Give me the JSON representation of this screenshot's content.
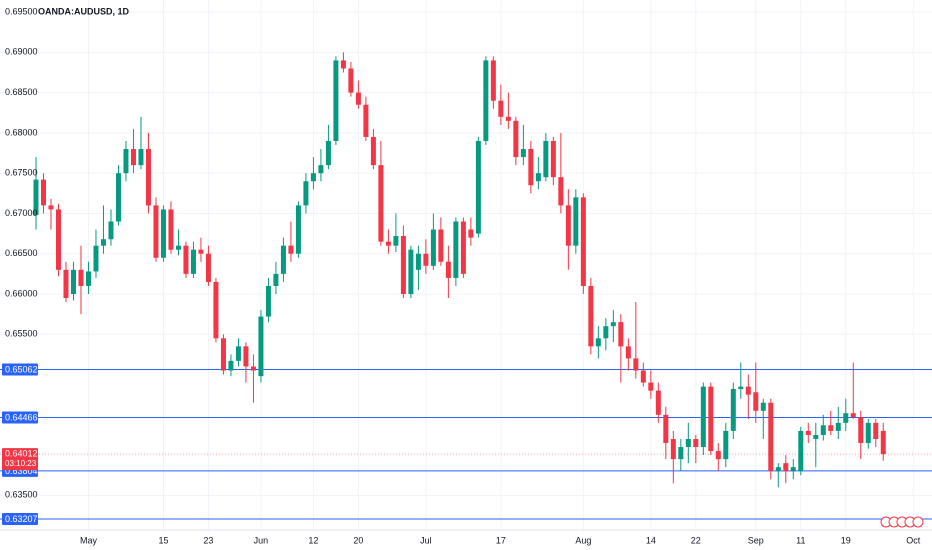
{
  "chart_data": {
    "type": "candlestick",
    "title": "OANDA:AUDUSD, 1D",
    "up_color": "#089981",
    "down_color": "#f23645",
    "grid": true,
    "xlim": [
      -4.8,
      119.5
    ],
    "ylim": [
      0.6307,
      0.6965
    ],
    "yticks": [
      {
        "value": 0.695,
        "label": "0.69500"
      },
      {
        "value": 0.69,
        "label": "0.69000"
      },
      {
        "value": 0.685,
        "label": "0.68500"
      },
      {
        "value": 0.68,
        "label": "0.68000"
      },
      {
        "value": 0.675,
        "label": "0.67500"
      },
      {
        "value": 0.67,
        "label": "0.67000"
      },
      {
        "value": 0.665,
        "label": "0.66500"
      },
      {
        "value": 0.66,
        "label": "0.66000"
      },
      {
        "value": 0.655,
        "label": "0.65500"
      },
      {
        "value": 0.635,
        "label": "0.63500"
      }
    ],
    "xticks": [
      {
        "value": 7,
        "label": "May"
      },
      {
        "value": 17,
        "label": "15"
      },
      {
        "value": 23,
        "label": "23"
      },
      {
        "value": 30,
        "label": "Jun"
      },
      {
        "value": 37,
        "label": "12"
      },
      {
        "value": 43,
        "label": "20"
      },
      {
        "value": 52,
        "label": "Jul"
      },
      {
        "value": 62,
        "label": "17"
      },
      {
        "value": 73,
        "label": "Aug"
      },
      {
        "value": 82,
        "label": "14"
      },
      {
        "value": 88,
        "label": "22"
      },
      {
        "value": 96,
        "label": "Sep"
      },
      {
        "value": 102,
        "label": "11"
      },
      {
        "value": 108,
        "label": "19"
      },
      {
        "value": 117,
        "label": "Oct"
      }
    ],
    "price_lines": [
      {
        "value": 0.65062,
        "label": "0.65062",
        "color": "#2962ff"
      },
      {
        "value": 0.64466,
        "label": "0.64466",
        "color": "#2962ff"
      },
      {
        "value": 0.63804,
        "label": "0.63804",
        "color": "#2962ff"
      },
      {
        "value": 0.63207,
        "label": "0.63207",
        "color": "#2962ff"
      }
    ],
    "current_price": {
      "value": 0.64012,
      "label": "0.64012",
      "countdown": "03:10:23",
      "color": "#f23645"
    },
    "open": [
      0.6698,
      0.6742,
      0.671,
      0.6705,
      0.663,
      0.66,
      0.663,
      0.661,
      0.6628,
      0.666,
      0.6668,
      0.669,
      0.675,
      0.678,
      0.676,
      0.678,
      0.671,
      0.6645,
      0.6705,
      0.6655,
      0.666,
      0.6625,
      0.6655,
      0.665,
      0.6615,
      0.6545,
      0.6505,
      0.6517,
      0.6535,
      0.651,
      0.6498,
      0.6572,
      0.661,
      0.6625,
      0.666,
      0.665,
      0.671,
      0.674,
      0.675,
      0.676,
      0.679,
      0.689,
      0.688,
      0.685,
      0.6835,
      0.6795,
      0.676,
      0.6665,
      0.666,
      0.6672,
      0.66,
      0.663,
      0.665,
      0.6635,
      0.668,
      0.664,
      0.662,
      0.669,
      0.668,
      0.6675,
      0.679,
      0.689,
      0.684,
      0.682,
      0.6815,
      0.677,
      0.678,
      0.674,
      0.6745,
      0.679,
      0.6745,
      0.671,
      0.666,
      0.672,
      0.661,
      0.6535,
      0.6545,
      0.656,
      0.6565,
      0.6535,
      0.652,
      0.6505,
      0.649,
      0.648,
      0.645,
      0.642,
      0.6395,
      0.641,
      0.642,
      0.641,
      0.6485,
      0.6405,
      0.6395,
      0.643,
      0.6482,
      0.6485,
      0.6478,
      0.6455,
      0.6465,
      0.638,
      0.639,
      0.638,
      0.638,
      0.643,
      0.642,
      0.6425,
      0.6437,
      0.643,
      0.644,
      0.6452,
      0.6447,
      0.6415,
      0.644,
      0.643
    ],
    "high": [
      0.677,
      0.675,
      0.6718,
      0.6712,
      0.664,
      0.664,
      0.666,
      0.664,
      0.668,
      0.671,
      0.6705,
      0.676,
      0.679,
      0.6805,
      0.682,
      0.68,
      0.672,
      0.671,
      0.6715,
      0.668,
      0.6665,
      0.6665,
      0.667,
      0.666,
      0.662,
      0.655,
      0.6525,
      0.6545,
      0.654,
      0.6525,
      0.658,
      0.662,
      0.664,
      0.667,
      0.669,
      0.6715,
      0.675,
      0.677,
      0.678,
      0.681,
      0.6895,
      0.69,
      0.6888,
      0.6865,
      0.6845,
      0.6805,
      0.679,
      0.668,
      0.67,
      0.6685,
      0.666,
      0.666,
      0.6668,
      0.67,
      0.6695,
      0.666,
      0.6695,
      0.6695,
      0.6695,
      0.6795,
      0.6895,
      0.6895,
      0.686,
      0.685,
      0.682,
      0.681,
      0.679,
      0.677,
      0.68,
      0.6795,
      0.68,
      0.673,
      0.673,
      0.6725,
      0.662,
      0.656,
      0.657,
      0.658,
      0.6575,
      0.6545,
      0.659,
      0.6515,
      0.6505,
      0.649,
      0.646,
      0.643,
      0.642,
      0.644,
      0.6425,
      0.649,
      0.649,
      0.6415,
      0.644,
      0.649,
      0.6515,
      0.65,
      0.6515,
      0.647,
      0.647,
      0.639,
      0.64,
      0.6395,
      0.6435,
      0.644,
      0.644,
      0.645,
      0.6455,
      0.646,
      0.647,
      0.6515,
      0.6455,
      0.6445,
      0.6445,
      0.644
    ],
    "low": [
      0.668,
      0.67,
      0.668,
      0.6622,
      0.659,
      0.6592,
      0.6575,
      0.66,
      0.662,
      0.665,
      0.666,
      0.6685,
      0.674,
      0.675,
      0.6755,
      0.67,
      0.664,
      0.664,
      0.665,
      0.6648,
      0.662,
      0.662,
      0.664,
      0.661,
      0.654,
      0.65,
      0.6498,
      0.651,
      0.649,
      0.6465,
      0.649,
      0.6565,
      0.66,
      0.6615,
      0.664,
      0.6645,
      0.67,
      0.673,
      0.674,
      0.6755,
      0.6785,
      0.6875,
      0.6845,
      0.683,
      0.679,
      0.6755,
      0.666,
      0.665,
      0.6652,
      0.6595,
      0.6595,
      0.6605,
      0.6625,
      0.663,
      0.6635,
      0.6595,
      0.661,
      0.662,
      0.666,
      0.667,
      0.6785,
      0.683,
      0.681,
      0.6805,
      0.676,
      0.676,
      0.6725,
      0.673,
      0.674,
      0.6735,
      0.67,
      0.663,
      0.665,
      0.66,
      0.6525,
      0.652,
      0.653,
      0.654,
      0.649,
      0.6505,
      0.6495,
      0.6485,
      0.647,
      0.644,
      0.6395,
      0.6365,
      0.638,
      0.639,
      0.639,
      0.64,
      0.64,
      0.638,
      0.6385,
      0.642,
      0.647,
      0.6445,
      0.644,
      0.642,
      0.637,
      0.636,
      0.6365,
      0.637,
      0.6375,
      0.6415,
      0.6385,
      0.6418,
      0.6425,
      0.642,
      0.643,
      0.6445,
      0.6395,
      0.6408,
      0.641,
      0.6393
    ],
    "close": [
      0.6742,
      0.671,
      0.6705,
      0.663,
      0.6595,
      0.663,
      0.661,
      0.6628,
      0.666,
      0.6668,
      0.669,
      0.675,
      0.678,
      0.676,
      0.678,
      0.671,
      0.6645,
      0.6705,
      0.6655,
      0.666,
      0.6625,
      0.6655,
      0.665,
      0.6615,
      0.6545,
      0.6505,
      0.6517,
      0.6535,
      0.651,
      0.6505,
      0.6572,
      0.661,
      0.6625,
      0.666,
      0.665,
      0.671,
      0.674,
      0.675,
      0.676,
      0.679,
      0.689,
      0.688,
      0.685,
      0.6835,
      0.6795,
      0.676,
      0.6665,
      0.666,
      0.6672,
      0.66,
      0.6655,
      0.665,
      0.6635,
      0.668,
      0.664,
      0.662,
      0.669,
      0.6625,
      0.667,
      0.679,
      0.689,
      0.684,
      0.682,
      0.6815,
      0.677,
      0.678,
      0.6735,
      0.675,
      0.679,
      0.6745,
      0.671,
      0.666,
      0.672,
      0.661,
      0.6535,
      0.6545,
      0.656,
      0.6565,
      0.6535,
      0.652,
      0.6505,
      0.649,
      0.648,
      0.645,
      0.6415,
      0.6395,
      0.641,
      0.642,
      0.641,
      0.6485,
      0.6405,
      0.6395,
      0.643,
      0.6482,
      0.6485,
      0.6475,
      0.6455,
      0.6465,
      0.638,
      0.6385,
      0.638,
      0.6385,
      0.643,
      0.6425,
      0.6425,
      0.6437,
      0.643,
      0.644,
      0.6452,
      0.6447,
      0.6415,
      0.644,
      0.642,
      0.64012
    ]
  }
}
